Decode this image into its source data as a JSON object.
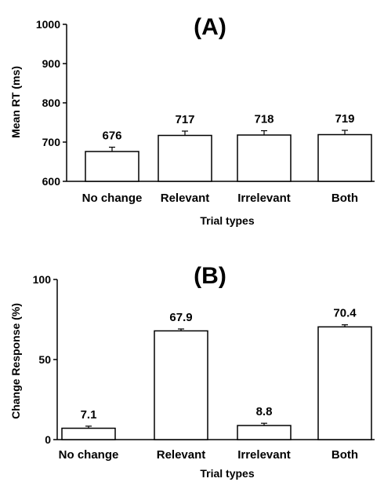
{
  "chart_data": [
    {
      "type": "bar",
      "title": "(A)",
      "categories": [
        "No change",
        "Relevant",
        "Irrelevant",
        "Both"
      ],
      "values": [
        676,
        717,
        718,
        719
      ],
      "errors": [
        11,
        11,
        11,
        11
      ],
      "data_labels": [
        "676",
        "717",
        "718",
        "719"
      ],
      "xlabel": "Trial types",
      "ylabel": "Mean RT (ms)",
      "ylim": [
        600,
        1000
      ],
      "yticks": [
        600,
        700,
        800,
        900,
        1000
      ],
      "ytick_labels": [
        "600",
        "700",
        "800",
        "900",
        "1000"
      ],
      "grid": false,
      "bar_fill": "#ffffff",
      "bar_stroke": "#000000"
    },
    {
      "type": "bar",
      "title": "(B)",
      "categories": [
        "No change",
        "Relevant",
        "Irrelevant",
        "Both"
      ],
      "values": [
        7.1,
        67.9,
        8.8,
        70.4
      ],
      "errors": [
        1.3,
        1.2,
        1.4,
        1.3
      ],
      "data_labels": [
        "7.1",
        "67.9",
        "8.8",
        "70.4"
      ],
      "xlabel": "Trial types",
      "ylabel": "Change Response (%)",
      "ylim": [
        0,
        100
      ],
      "yticks": [
        0,
        50,
        100
      ],
      "ytick_labels": [
        "0",
        "50",
        "100"
      ],
      "grid": false,
      "bar_fill": "#ffffff",
      "bar_stroke": "#000000"
    }
  ]
}
